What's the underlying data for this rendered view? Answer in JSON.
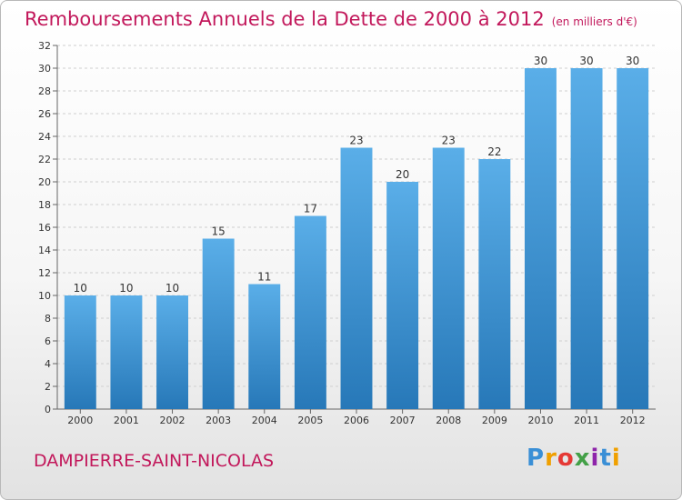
{
  "header": {
    "title": "Remboursements Annuels de la Dette de 2000 à 2012",
    "unit": "(en milliers d'€)"
  },
  "footer": {
    "commune": "DAMPIERRE-SAINT-NICOLAS",
    "logo": "Proxiti"
  },
  "colors": {
    "title": "#c2185b",
    "bar_top": "#5aaee8",
    "bar_bottom": "#2778b8"
  },
  "chart_data": {
    "type": "bar",
    "title": "Remboursements Annuels de la Dette de 2000 à 2012",
    "subtitle": "(en milliers d'€)",
    "xlabel": "",
    "ylabel": "",
    "categories": [
      "2000",
      "2001",
      "2002",
      "2003",
      "2004",
      "2005",
      "2006",
      "2007",
      "2008",
      "2009",
      "2010",
      "2011",
      "2012"
    ],
    "values": [
      10,
      10,
      10,
      15,
      11,
      17,
      23,
      20,
      23,
      22,
      30,
      30,
      30
    ],
    "ylim": [
      0,
      32
    ],
    "yticks": [
      0,
      2,
      4,
      6,
      8,
      10,
      12,
      14,
      16,
      18,
      20,
      22,
      24,
      26,
      28,
      30,
      32
    ],
    "grid": true,
    "legend": "none"
  }
}
